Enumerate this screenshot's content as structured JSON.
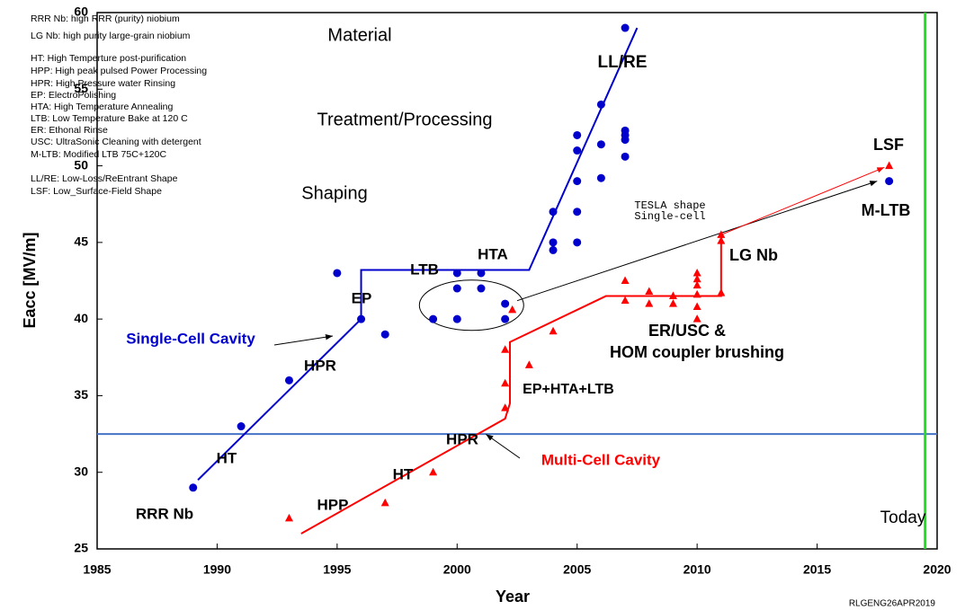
{
  "chart_data": {
    "type": "scatter",
    "xlabel": "Year",
    "ylabel": "Eacc [MV/m]",
    "xlim": [
      1985,
      2020
    ],
    "ylim": [
      25,
      60
    ],
    "xticks": [
      1985,
      1990,
      1995,
      2000,
      2005,
      2010,
      2015,
      2020
    ],
    "yticks": [
      25,
      30,
      35,
      40,
      45,
      50,
      55,
      60
    ],
    "series": [
      {
        "name": "Single-Cell Cavity",
        "color": "#0000cc",
        "marker": "circle",
        "x": [
          1989,
          1991,
          1993,
          1995,
          1996,
          1997,
          1999,
          2000,
          2000,
          2000,
          2001,
          2001,
          2002,
          2002,
          2004,
          2004,
          2004,
          2005,
          2005,
          2005,
          2005,
          2005,
          2006,
          2006,
          2006,
          2007,
          2007,
          2007,
          2007,
          2007,
          2018
        ],
        "values": [
          29,
          33,
          36,
          43,
          40,
          39,
          40,
          43,
          42,
          40,
          43,
          42,
          41,
          40,
          47,
          45,
          44.5,
          52,
          51,
          49,
          47,
          45,
          54,
          51.4,
          49.2,
          59,
          52.3,
          52,
          51.7,
          50.6,
          49
        ]
      },
      {
        "name": "Multi-Cell Cavity",
        "color": "#ff0000",
        "marker": "triangle",
        "x": [
          1993,
          1997,
          1999,
          2002,
          2002,
          2002,
          2002.3,
          2003,
          2004,
          2007,
          2007,
          2008,
          2008,
          2009,
          2009,
          2010,
          2010,
          2010,
          2010,
          2010,
          2010,
          2011,
          2011,
          2011,
          2018
        ],
        "values": [
          27,
          28,
          30,
          34.2,
          35.8,
          38,
          40.6,
          37,
          39.2,
          42.5,
          41.2,
          41.8,
          41,
          41.5,
          41,
          43,
          42.6,
          42.2,
          41.6,
          40.8,
          40,
          45.5,
          45.1,
          41.7,
          50
        ]
      }
    ],
    "trend_lines": [
      {
        "color": "#0000cc",
        "x": [
          1989.2,
          1996,
          1996,
          2003,
          2007.5
        ],
        "values": [
          29.5,
          40,
          43.2,
          43.2,
          59
        ]
      },
      {
        "color": "#ff0000",
        "x": [
          1993.5,
          2002,
          2002.2,
          2002.2,
          2006.2,
          2011,
          2011
        ],
        "values": [
          26,
          33.5,
          34.5,
          38.5,
          41.5,
          41.5,
          45.5
        ]
      }
    ],
    "reference_line": {
      "value": 32.5,
      "color": "#4472c4"
    },
    "today_line": {
      "value": 2019.5,
      "label": "Today",
      "color": "#22dd22"
    },
    "annotations": [
      "Material",
      "Treatment/Processing",
      "Shaping",
      "LL/RE",
      "LSF",
      "M-LTB",
      "LG Nb",
      "ER/USC &",
      "HOM coupler brushing",
      "EP+HTA+LTB",
      "HPR",
      "Multi-Cell Cavity",
      "HT",
      "HPP",
      "RRR Nb",
      "HT",
      "HPR",
      "Single-Cell Cavity",
      "EP",
      "LTB",
      "HTA",
      "TESLA shape",
      "Single-cell"
    ],
    "notes": [
      "RRR Nb: high RRR (purity) niobium",
      "LG Nb: high purity large-grain niobium",
      "HT: High Temperture post-purification",
      "HPP: High peak pulsed Power Processing",
      "HPR: High Pressure water Rinsing",
      "EP: ElectroPolishing",
      "HTA: High Temperature Annealing",
      "LTB: Low Temperature Bake at 120 C",
      "ER: Ethonal Rinse",
      "USC: UltraSonic Cleaning with detergent",
      "M-LTB: Modified LTB 75C+120C",
      "LL/RE: Low-Loss/ReEntrant Shape",
      "LSF: Low_Surface-Field Shape"
    ],
    "footer": "RLGENG26APR2019"
  }
}
